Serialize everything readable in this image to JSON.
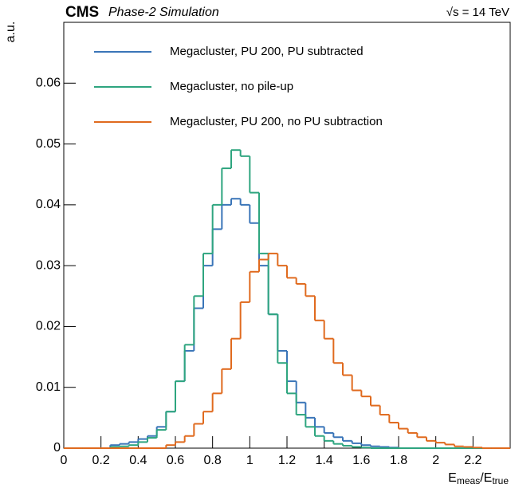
{
  "chart_data": {
    "type": "histogram",
    "experiment": "CMS",
    "subtitle": "Phase-2 Simulation",
    "energy": "√s = 14 TeV",
    "y_label": "a.u.",
    "x_label": [
      "E",
      "meas",
      "/E",
      "true"
    ],
    "bins": [
      0,
      0.05,
      0.1,
      0.15,
      0.2,
      0.25,
      0.3,
      0.35,
      0.4,
      0.45,
      0.5,
      0.55,
      0.6,
      0.65,
      0.7,
      0.75,
      0.8,
      0.85,
      0.9,
      0.95,
      1,
      1.05,
      1.1,
      1.15,
      1.2,
      1.25,
      1.3,
      1.35,
      1.4,
      1.45,
      1.5,
      1.55,
      1.6,
      1.65,
      1.7,
      1.75,
      1.8,
      1.85,
      1.9,
      1.95,
      2,
      2.05,
      2.1,
      2.15,
      2.2,
      2.25,
      2.3,
      2.35,
      2.4
    ],
    "series": [
      {
        "name": "Megacluster, PU 200, PU subtracted",
        "color": "#3a75b8",
        "values": [
          0,
          0,
          0,
          0,
          0,
          0.0005,
          0.0007,
          0.001,
          0.0015,
          0.002,
          0.0035,
          0.006,
          0.011,
          0.016,
          0.023,
          0.03,
          0.036,
          0.04,
          0.041,
          0.04,
          0.037,
          0.03,
          0.022,
          0.016,
          0.011,
          0.0075,
          0.005,
          0.0035,
          0.0025,
          0.0018,
          0.0012,
          0.0008,
          0.0005,
          0.0003,
          0.0002,
          0.0001,
          0,
          0,
          0,
          0,
          0,
          0,
          0,
          0,
          0,
          0,
          0,
          0
        ]
      },
      {
        "name": "Megacluster, no pile-up",
        "color": "#2ea57f",
        "values": [
          0,
          0,
          0,
          0,
          0,
          0.0002,
          0.0003,
          0.0005,
          0.001,
          0.0017,
          0.003,
          0.006,
          0.011,
          0.017,
          0.025,
          0.032,
          0.04,
          0.046,
          0.049,
          0.048,
          0.042,
          0.032,
          0.022,
          0.014,
          0.009,
          0.0055,
          0.0035,
          0.002,
          0.0012,
          0.0007,
          0.0004,
          0.0002,
          0.0001,
          0,
          0,
          0,
          0,
          0,
          0,
          0,
          0,
          0,
          0,
          0,
          0,
          0,
          0,
          0
        ]
      },
      {
        "name": "Megacluster, PU 200, no PU subtraction",
        "color": "#e06a1e",
        "values": [
          0,
          0,
          0,
          0,
          0,
          0,
          0,
          0,
          0,
          0,
          0,
          0.0005,
          0.001,
          0.002,
          0.004,
          0.006,
          0.009,
          0.013,
          0.018,
          0.024,
          0.029,
          0.031,
          0.032,
          0.03,
          0.028,
          0.027,
          0.025,
          0.021,
          0.018,
          0.014,
          0.012,
          0.0095,
          0.0085,
          0.007,
          0.0055,
          0.0042,
          0.0032,
          0.0025,
          0.0018,
          0.0012,
          0.0009,
          0.0006,
          0.0003,
          0.0002,
          0.0001,
          0,
          0,
          0
        ]
      }
    ],
    "xlim": [
      0,
      2.4
    ],
    "ylim": [
      0,
      0.07
    ],
    "xticks": [
      0,
      0.2,
      0.4,
      0.6,
      0.8,
      1,
      1.2,
      1.4,
      1.6,
      1.8,
      2,
      2.2
    ],
    "yticks": [
      0,
      0.01,
      0.02,
      0.03,
      0.04,
      0.05,
      0.06
    ],
    "legend": "upper left"
  }
}
